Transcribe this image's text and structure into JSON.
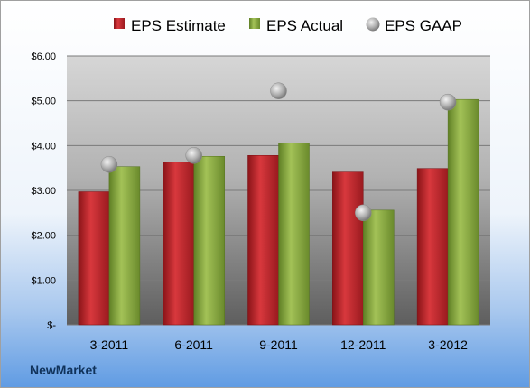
{
  "company": "NewMarket",
  "colors": {
    "estimate": "#c0272d",
    "actual": "#8aac3f",
    "gaap": "#b4b4b4"
  },
  "chart_data": {
    "type": "bar",
    "categories": [
      "3-2011",
      "6-2011",
      "9-2011",
      "12-2011",
      "3-2012"
    ],
    "series": [
      {
        "name": "EPS Estimate",
        "kind": "bar",
        "values": [
          2.97,
          3.63,
          3.78,
          3.41,
          3.49
        ]
      },
      {
        "name": "EPS Actual",
        "kind": "bar",
        "values": [
          3.53,
          3.76,
          4.06,
          2.56,
          5.03
        ]
      },
      {
        "name": "EPS GAAP",
        "kind": "scatter",
        "values": [
          3.58,
          3.78,
          5.22,
          2.5,
          4.97
        ]
      }
    ],
    "ylim": [
      0,
      6
    ],
    "yticks": [
      0,
      1,
      2,
      3,
      4,
      5,
      6
    ],
    "ytick_labels": [
      "$-",
      "$1.00",
      "$2.00",
      "$3.00",
      "$4.00",
      "$5.00",
      "$6.00"
    ],
    "grid": true,
    "legend": "top"
  }
}
